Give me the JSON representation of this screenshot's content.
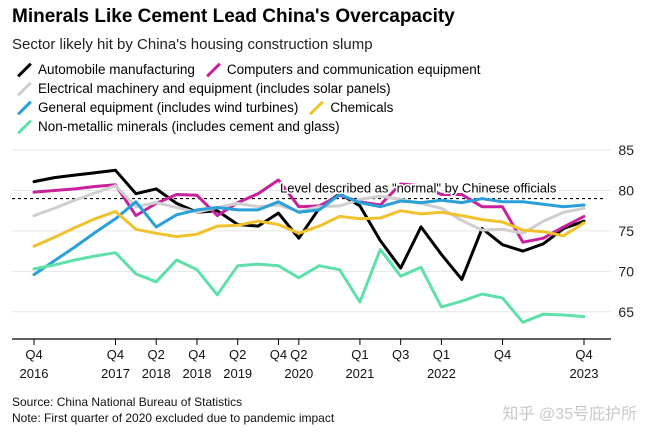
{
  "title": "Minerals Like Cement Lead China's Overcapacity",
  "subtitle": "Sector likely hit by China's housing construction slump",
  "source": "Source: China National Bureau of Statistics",
  "note": "Note: First quarter of 2020 excluded due to pandemic impact",
  "watermark": "知乎 @35号庇护所",
  "legend_rows": [
    [
      0,
      1
    ],
    [
      2
    ],
    [
      3,
      4
    ],
    [
      5
    ]
  ],
  "chart_data": {
    "type": "line",
    "title": "Minerals Like Cement Lead China's Overcapacity",
    "ylim": [
      62,
      86
    ],
    "yticks": [
      65,
      70,
      75,
      80,
      85
    ],
    "y_axis_side": "right",
    "grid": "horizontal",
    "x": [
      "Q4 2016",
      "Q1 2017",
      "Q2 2017",
      "Q3 2017",
      "Q4 2017",
      "Q1 2018",
      "Q2 2018",
      "Q3 2018",
      "Q4 2018",
      "Q1 2019",
      "Q2 2019",
      "Q3 2019",
      "Q4 2019",
      "Q2 2020",
      "Q3 2020",
      "Q4 2020",
      "Q1 2021",
      "Q2 2021",
      "Q3 2021",
      "Q4 2021",
      "Q1 2022",
      "Q2 2022",
      "Q3 2022",
      "Q4 2022",
      "Q1 2023",
      "Q2 2023",
      "Q3 2023",
      "Q4 2023"
    ],
    "x_ticks": [
      {
        "q": "Q4",
        "year": "2016",
        "i": 0
      },
      {
        "q": "Q4",
        "year": "2017",
        "i": 4
      },
      {
        "q": "Q2",
        "year": "2018",
        "i": 6
      },
      {
        "q": "Q4",
        "year": "2018",
        "i": 8
      },
      {
        "q": "Q2",
        "year": "2019",
        "i": 10
      },
      {
        "q": "Q4",
        "year": "",
        "i": 12
      },
      {
        "q": "Q2",
        "year": "2020",
        "i": 13
      },
      {
        "q": "Q1",
        "year": "2021",
        "i": 16
      },
      {
        "q": "Q3",
        "year": "",
        "i": 18
      },
      {
        "q": "Q1",
        "year": "2022",
        "i": 20
      },
      {
        "q": "Q4",
        "year": "",
        "i": 23
      },
      {
        "q": "Q4",
        "year": "2023",
        "i": 27
      }
    ],
    "reference_line": {
      "value": 79,
      "label": "Level described as \"normal\" by Chinese officials"
    },
    "series": [
      {
        "name": "Automobile manufacturing",
        "color": "#000000",
        "values": [
          81.1,
          81.6,
          81.9,
          82.2,
          82.5,
          79.6,
          80.2,
          78.4,
          77.3,
          77.5,
          75.8,
          75.6,
          77.2,
          74.1,
          77.8,
          79.6,
          78.1,
          73.8,
          70.4,
          75.5,
          72.1,
          69.0,
          75.3,
          73.3,
          72.5,
          73.4,
          75.3,
          76.2
        ]
      },
      {
        "name": "Computers and communication equipment",
        "color": "#c8219b",
        "values": [
          79.8,
          80.0,
          80.2,
          80.5,
          80.7,
          76.9,
          78.4,
          79.5,
          79.4,
          76.9,
          78.5,
          79.6,
          81.3,
          78.0,
          78.1,
          79.4,
          78.6,
          78.2,
          80.8,
          80.6,
          79.5,
          79.5,
          78.0,
          78.0,
          73.6,
          74.1,
          75.5,
          76.8
        ]
      },
      {
        "name": "Electrical machinery and equipment (includes solar panels)",
        "color": "#cfcfcf",
        "values": [
          76.9,
          77.8,
          78.8,
          79.7,
          80.6,
          78.0,
          78.5,
          77.9,
          77.3,
          77.9,
          78.4,
          78.0,
          78.2,
          77.4,
          78.0,
          78.1,
          78.9,
          79.3,
          78.9,
          78.4,
          77.8,
          76.3,
          75.1,
          75.2,
          74.7,
          76.2,
          77.3,
          77.8
        ]
      },
      {
        "name": "General equipment (includes wind turbines)",
        "color": "#2a9fd8",
        "values": [
          69.6,
          71.3,
          73.0,
          74.8,
          76.5,
          78.6,
          75.5,
          77.0,
          77.6,
          77.9,
          77.6,
          77.6,
          78.6,
          77.3,
          77.6,
          79.5,
          78.5,
          78.0,
          78.7,
          78.5,
          78.8,
          78.5,
          79.0,
          78.6,
          78.6,
          78.3,
          78.0,
          78.2
        ]
      },
      {
        "name": "Chemicals",
        "color": "#f2c12e",
        "values": [
          73.1,
          74.2,
          75.4,
          76.5,
          77.4,
          75.2,
          74.7,
          74.3,
          74.6,
          75.6,
          75.7,
          76.2,
          75.8,
          74.7,
          75.6,
          76.8,
          76.5,
          76.6,
          77.5,
          77.1,
          77.3,
          76.9,
          76.4,
          76.1,
          75.1,
          74.9,
          74.4,
          76.0
        ]
      },
      {
        "name": "Non-metallic minerals (includes cement and glass)",
        "color": "#5fe0a8",
        "values": [
          70.3,
          70.8,
          71.4,
          71.9,
          72.3,
          69.7,
          68.7,
          71.4,
          70.2,
          67.1,
          70.7,
          70.9,
          70.7,
          69.2,
          70.7,
          70.2,
          66.2,
          72.7,
          69.4,
          70.5,
          65.6,
          66.3,
          67.2,
          66.7,
          63.7,
          64.7,
          64.6,
          64.4
        ]
      }
    ]
  }
}
